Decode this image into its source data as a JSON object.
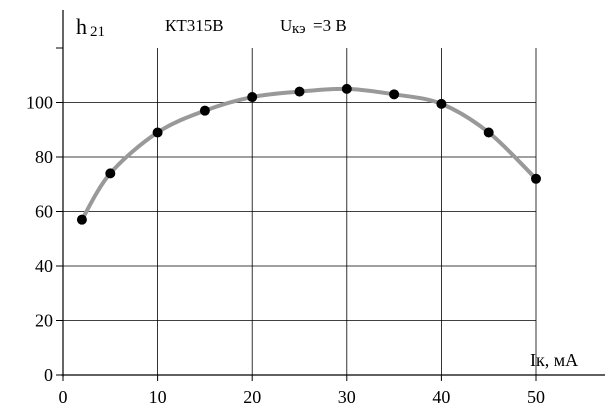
{
  "chart_data": {
    "type": "line",
    "ylabel_main": "h",
    "ylabel_sub": "21",
    "title_device": "КТ315В",
    "title_condition_main": "U",
    "title_condition_sub": "кэ",
    "title_condition_value": "=3 В",
    "xlabel": "Iк, мА",
    "xlim": [
      0,
      50
    ],
    "ylim": [
      0,
      120
    ],
    "x_ticks": [
      0,
      10,
      20,
      30,
      40,
      50
    ],
    "y_ticks": [
      0,
      20,
      40,
      60,
      80,
      100
    ],
    "grid": true,
    "series": [
      {
        "x": [
          2,
          5,
          10,
          15,
          20,
          25,
          30,
          35,
          40,
          45,
          50
        ],
        "y": [
          57,
          74,
          89,
          97,
          102,
          104,
          105,
          103,
          99.5,
          89,
          72
        ],
        "line_color": "#999999",
        "marker_color": "#000000"
      }
    ]
  }
}
